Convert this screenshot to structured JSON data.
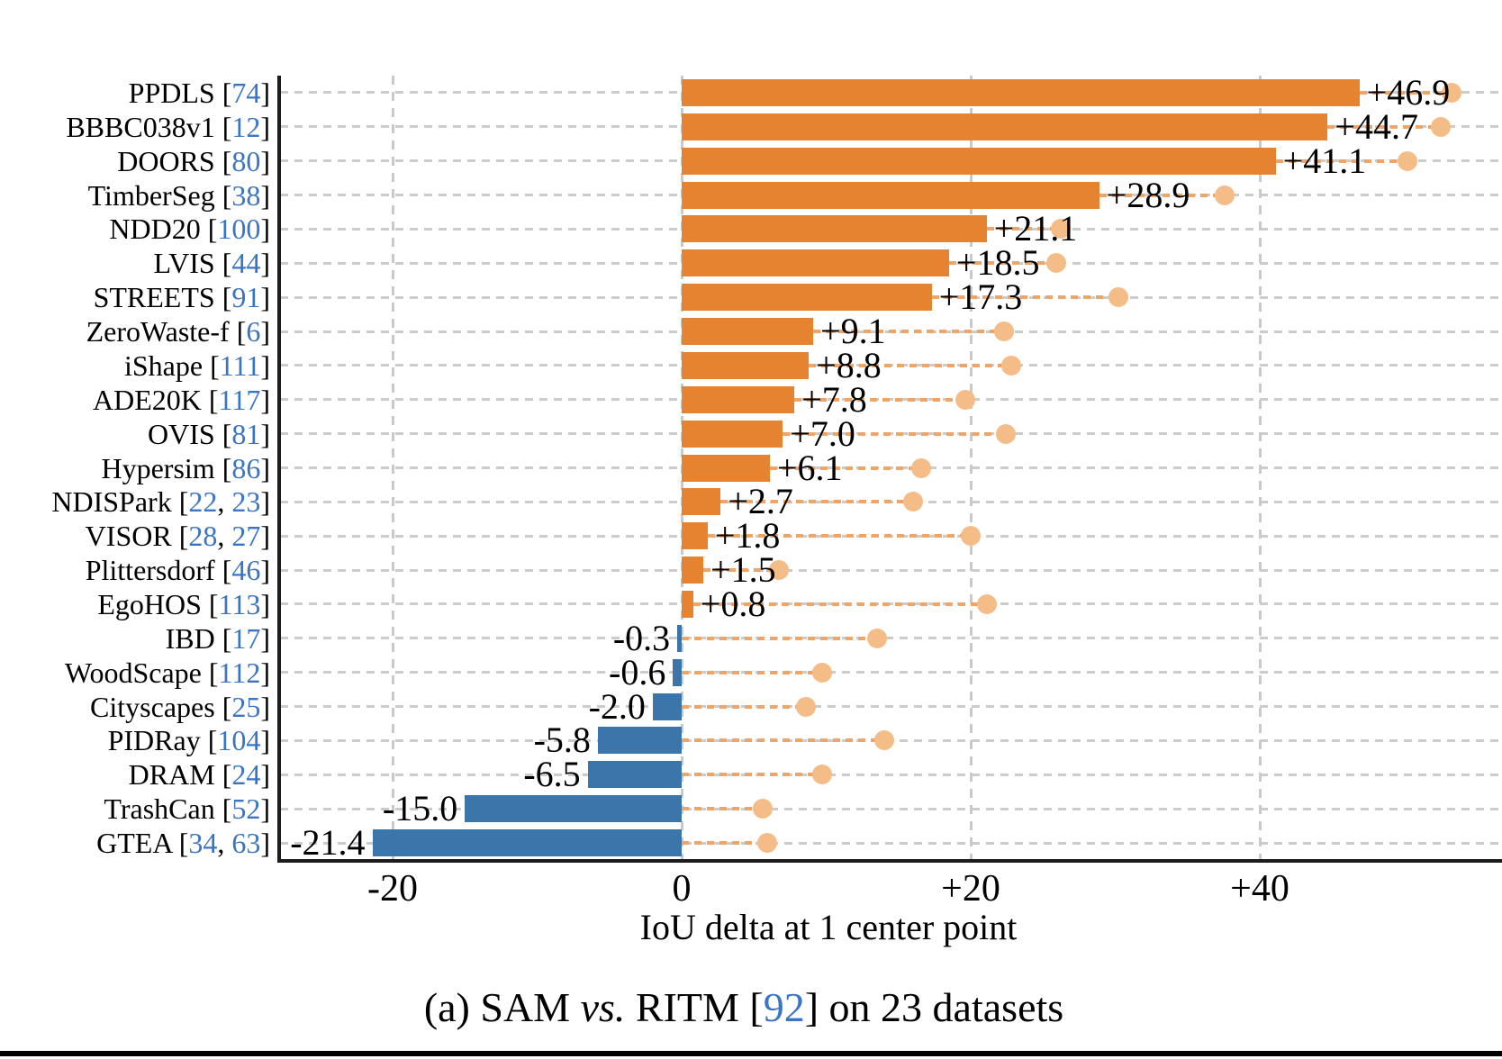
{
  "figure": {
    "xlabel": "IoU delta at 1 center point",
    "caption": {
      "part1": "(a) SAM ",
      "vs": "vs.",
      "part2": " RITM [",
      "ref": "92",
      "part3": "] on 23 datasets"
    }
  },
  "chart_data": {
    "type": "bar",
    "orientation": "horizontal",
    "title": "",
    "xlabel": "IoU delta at 1 center point",
    "ylabel": "",
    "xlim": [
      -28,
      57
    ],
    "grid": "dashed",
    "xticks": [
      {
        "value": -20,
        "label": "-20"
      },
      {
        "value": 0,
        "label": "0"
      },
      {
        "value": 20,
        "label": "+20"
      },
      {
        "value": 40,
        "label": "+40"
      }
    ],
    "colors": {
      "positive_bar": "#e58331",
      "negative_bar": "#3c75a9",
      "circle_marker": "#f4bd88",
      "connector_dash": "#eea567",
      "grid_dash": "#cbcbcb",
      "citation_blue": "#3a75c4"
    },
    "series_notes": "bars = IoU delta at 1 center point; light orange circles = additional marker per row (value estimated from pixels)",
    "rows": [
      {
        "dataset": "PPDLS",
        "refs": [
          "74"
        ],
        "delta": 46.9,
        "delta_label": "+46.9",
        "circle": 53.3
      },
      {
        "dataset": "BBBC038v1",
        "refs": [
          "12"
        ],
        "delta": 44.7,
        "delta_label": "+44.7",
        "circle": 52.5
      },
      {
        "dataset": "DOORS",
        "refs": [
          "80"
        ],
        "delta": 41.1,
        "delta_label": "+41.1",
        "circle": 50.2
      },
      {
        "dataset": "TimberSeg",
        "refs": [
          "38"
        ],
        "delta": 28.9,
        "delta_label": "+28.9",
        "circle": 37.6
      },
      {
        "dataset": "NDD20",
        "refs": [
          "100"
        ],
        "delta": 21.1,
        "delta_label": "+21.1",
        "circle": 26.2
      },
      {
        "dataset": "LVIS",
        "refs": [
          "44"
        ],
        "delta": 18.5,
        "delta_label": "+18.5",
        "circle": 25.9
      },
      {
        "dataset": "STREETS",
        "refs": [
          "91"
        ],
        "delta": 17.3,
        "delta_label": "+17.3",
        "circle": 30.2
      },
      {
        "dataset": "ZeroWaste-f",
        "refs": [
          "6"
        ],
        "delta": 9.1,
        "delta_label": "+9.1",
        "circle": 22.3
      },
      {
        "dataset": "iShape",
        "refs": [
          "111"
        ],
        "delta": 8.8,
        "delta_label": "+8.8",
        "circle": 22.8
      },
      {
        "dataset": "ADE20K",
        "refs": [
          "117"
        ],
        "delta": 7.8,
        "delta_label": "+7.8",
        "circle": 19.6
      },
      {
        "dataset": "OVIS",
        "refs": [
          "81"
        ],
        "delta": 7.0,
        "delta_label": "+7.0",
        "circle": 22.4
      },
      {
        "dataset": "Hypersim",
        "refs": [
          "86"
        ],
        "delta": 6.1,
        "delta_label": "+6.1",
        "circle": 16.6
      },
      {
        "dataset": "NDISPark",
        "refs": [
          "22",
          "23"
        ],
        "delta": 2.7,
        "delta_label": "+2.7",
        "circle": 16.0
      },
      {
        "dataset": "VISOR",
        "refs": [
          "28",
          "27"
        ],
        "delta": 1.8,
        "delta_label": "+1.8",
        "circle": 20.0
      },
      {
        "dataset": "Plittersdorf",
        "refs": [
          "46"
        ],
        "delta": 1.5,
        "delta_label": "+1.5",
        "circle": 6.7
      },
      {
        "dataset": "EgoHOS",
        "refs": [
          "113"
        ],
        "delta": 0.8,
        "delta_label": "+0.8",
        "circle": 21.1
      },
      {
        "dataset": "IBD",
        "refs": [
          "17"
        ],
        "delta": -0.3,
        "delta_label": "-0.3",
        "circle": 13.5
      },
      {
        "dataset": "WoodScape",
        "refs": [
          "112"
        ],
        "delta": -0.6,
        "delta_label": "-0.6",
        "circle": 9.7
      },
      {
        "dataset": "Cityscapes",
        "refs": [
          "25"
        ],
        "delta": -2.0,
        "delta_label": "-2.0",
        "circle": 8.6
      },
      {
        "dataset": "PIDRay",
        "refs": [
          "104"
        ],
        "delta": -5.8,
        "delta_label": "-5.8",
        "circle": 14.0
      },
      {
        "dataset": "DRAM",
        "refs": [
          "24"
        ],
        "delta": -6.5,
        "delta_label": "-6.5",
        "circle": 9.7
      },
      {
        "dataset": "TrashCan",
        "refs": [
          "52"
        ],
        "delta": -15.0,
        "delta_label": "-15.0",
        "circle": 5.6
      },
      {
        "dataset": "GTEA",
        "refs": [
          "34",
          "63"
        ],
        "delta": -21.4,
        "delta_label": "-21.4",
        "circle": 5.9
      }
    ]
  }
}
